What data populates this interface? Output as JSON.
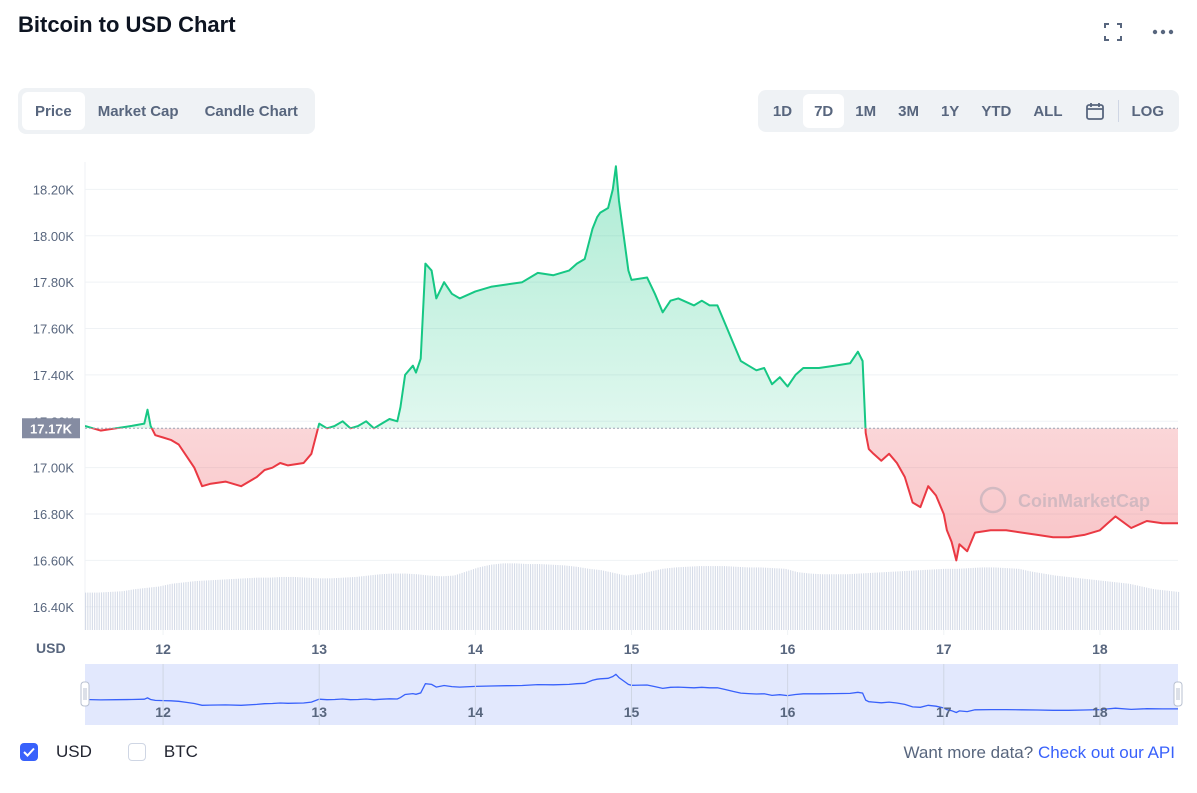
{
  "title": "Bitcoin to USD Chart",
  "toolbar": {
    "view_tabs": [
      "Price",
      "Market Cap",
      "Candle Chart"
    ],
    "active_view": "Price",
    "range_tabs": [
      "1D",
      "7D",
      "1M",
      "3M",
      "1Y",
      "YTD",
      "ALL"
    ],
    "active_range": "7D",
    "log_label": "LOG"
  },
  "colors": {
    "up": "#16c784",
    "down": "#ea3943",
    "accent": "#3861fb",
    "volume": "#cfd6e4",
    "grid": "#eff2f5",
    "axis_text": "#58667e"
  },
  "chart_data": {
    "type": "line",
    "ylabel": "USD",
    "yticks": [
      "18.20K",
      "18.00K",
      "17.80K",
      "17.60K",
      "17.40K",
      "17.20K",
      "17.00K",
      "16.80K",
      "16.60K",
      "16.40K"
    ],
    "ylim": [
      16300,
      18370
    ],
    "baseline": 17170,
    "baseline_label": "17.17K",
    "xticks": [
      "12",
      "13",
      "14",
      "15",
      "16",
      "17",
      "18"
    ],
    "xlim": [
      11.5,
      18.5
    ],
    "watermark": "CoinMarketCap",
    "series": [
      {
        "x": [
          11.5,
          11.6,
          11.7,
          11.8,
          11.88,
          11.9,
          11.92,
          11.95,
          12.0,
          12.05,
          12.1,
          12.15,
          12.2,
          12.25,
          12.3,
          12.4,
          12.5,
          12.6,
          12.65,
          12.7,
          12.75,
          12.8,
          12.9,
          12.95,
          13.0,
          13.05,
          13.1,
          13.15,
          13.2,
          13.25,
          13.3,
          13.35,
          13.4,
          13.45,
          13.5,
          13.52,
          13.55,
          13.6,
          13.62,
          13.65,
          13.68,
          13.72,
          13.75,
          13.8,
          13.85,
          13.9,
          14.0,
          14.1,
          14.2,
          14.3,
          14.4,
          14.5,
          14.6,
          14.65,
          14.7,
          14.75,
          14.78,
          14.8,
          14.85,
          14.88,
          14.9,
          14.92,
          14.95,
          14.98,
          15.0,
          15.1,
          15.15,
          15.2,
          15.25,
          15.3,
          15.4,
          15.45,
          15.5,
          15.55,
          15.6,
          15.65,
          15.7,
          15.75,
          15.8,
          15.85,
          15.9,
          15.95,
          16.0,
          16.05,
          16.1,
          16.2,
          16.3,
          16.4,
          16.45,
          16.48,
          16.5,
          16.52,
          16.55,
          16.6,
          16.65,
          16.7,
          16.75,
          16.8,
          16.85,
          16.9,
          16.95,
          17.0,
          17.02,
          17.05,
          17.08,
          17.1,
          17.15,
          17.2,
          17.3,
          17.4,
          17.5,
          17.6,
          17.7,
          17.8,
          17.9,
          18.0,
          18.05,
          18.1,
          18.2,
          18.3,
          18.4,
          18.5
        ],
        "y": [
          17180,
          17160,
          17170,
          17180,
          17190,
          17250,
          17180,
          17140,
          17130,
          17120,
          17100,
          17050,
          17000,
          16920,
          16930,
          16940,
          16920,
          16960,
          16990,
          17000,
          17020,
          17010,
          17020,
          17060,
          17190,
          17170,
          17180,
          17200,
          17170,
          17180,
          17200,
          17170,
          17190,
          17210,
          17200,
          17260,
          17400,
          17440,
          17410,
          17470,
          17880,
          17850,
          17730,
          17800,
          17750,
          17730,
          17760,
          17780,
          17790,
          17800,
          17840,
          17830,
          17850,
          17880,
          17900,
          18030,
          18080,
          18100,
          18120,
          18200,
          18300,
          18150,
          18000,
          17850,
          17810,
          17820,
          17750,
          17670,
          17720,
          17730,
          17700,
          17720,
          17700,
          17700,
          17620,
          17540,
          17460,
          17440,
          17420,
          17430,
          17360,
          17390,
          17350,
          17400,
          17430,
          17430,
          17440,
          17450,
          17500,
          17460,
          17150,
          17080,
          17060,
          17030,
          17060,
          17020,
          16960,
          16850,
          16830,
          16920,
          16880,
          16800,
          16730,
          16680,
          16600,
          16670,
          16640,
          16720,
          16730,
          16730,
          16720,
          16710,
          16700,
          16700,
          16710,
          16730,
          16760,
          16790,
          16740,
          16770,
          16760,
          16760
        ]
      }
    ],
    "volume": [
      0.55,
      0.55,
      0.56,
      0.57,
      0.6,
      0.62,
      0.64,
      0.68,
      0.7,
      0.72,
      0.73,
      0.74,
      0.75,
      0.76,
      0.77,
      0.77,
      0.78,
      0.78,
      0.77,
      0.76,
      0.76,
      0.77,
      0.78,
      0.8,
      0.82,
      0.83,
      0.83,
      0.82,
      0.8,
      0.79,
      0.8,
      0.86,
      0.92,
      0.96,
      0.98,
      0.98,
      0.97,
      0.97,
      0.96,
      0.95,
      0.93,
      0.9,
      0.88,
      0.84,
      0.8,
      0.82,
      0.86,
      0.9,
      0.92,
      0.93,
      0.94,
      0.94,
      0.94,
      0.93,
      0.92,
      0.92,
      0.91,
      0.9,
      0.85,
      0.83,
      0.82,
      0.82,
      0.82,
      0.83,
      0.84,
      0.85,
      0.86,
      0.87,
      0.88,
      0.89,
      0.9,
      0.9,
      0.91,
      0.92,
      0.92,
      0.91,
      0.9,
      0.86,
      0.83,
      0.8,
      0.78,
      0.76,
      0.74,
      0.72,
      0.7,
      0.68,
      0.64,
      0.6,
      0.58,
      0.56
    ],
    "navigator": {
      "xticks": [
        "12",
        "13",
        "14",
        "15",
        "16",
        "17",
        "18"
      ]
    }
  },
  "legend": {
    "usd_label": "USD",
    "usd_checked": true,
    "btc_label": "BTC",
    "btc_checked": false
  },
  "footer": {
    "question": "Want more data?",
    "link": "Check out our API"
  }
}
